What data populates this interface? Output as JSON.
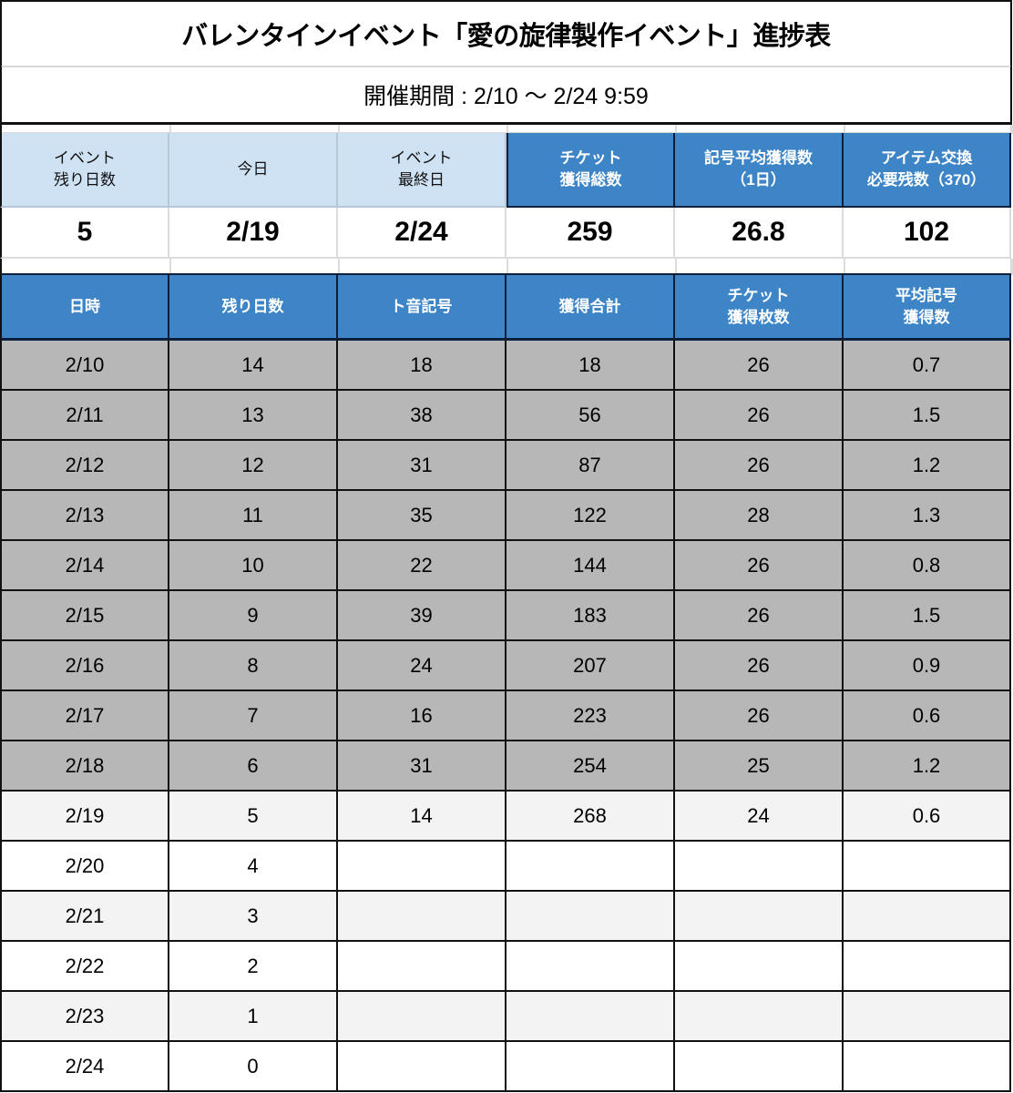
{
  "title": "バレンタインイベント「愛の旋律製作イベント」進捗表",
  "period": "開催期間 : 2/10 〜 2/24 9:59",
  "summary": {
    "headers": [
      "イベント\n残り日数",
      "今日",
      "イベント\n最終日",
      "チケット\n獲得総数",
      "記号平均獲得数\n（1日）",
      "アイテム交換\n必要残数（370）"
    ],
    "values": [
      "5",
      "2/19",
      "2/24",
      "259",
      "26.8",
      "102"
    ]
  },
  "table": {
    "headers": [
      "日時",
      "残り日数",
      "ト音記号",
      "獲得合計",
      "チケット\n獲得枚数",
      "平均記号\n獲得数"
    ],
    "rows": [
      {
        "status": "past",
        "cells": [
          "2/10",
          "14",
          "18",
          "18",
          "26",
          "0.7"
        ]
      },
      {
        "status": "past",
        "cells": [
          "2/11",
          "13",
          "38",
          "56",
          "26",
          "1.5"
        ]
      },
      {
        "status": "past",
        "cells": [
          "2/12",
          "12",
          "31",
          "87",
          "26",
          "1.2"
        ]
      },
      {
        "status": "past",
        "cells": [
          "2/13",
          "11",
          "35",
          "122",
          "28",
          "1.3"
        ]
      },
      {
        "status": "past",
        "cells": [
          "2/14",
          "10",
          "22",
          "144",
          "26",
          "0.8"
        ]
      },
      {
        "status": "past",
        "cells": [
          "2/15",
          "9",
          "39",
          "183",
          "26",
          "1.5"
        ]
      },
      {
        "status": "past",
        "cells": [
          "2/16",
          "8",
          "24",
          "207",
          "26",
          "0.9"
        ]
      },
      {
        "status": "past",
        "cells": [
          "2/17",
          "7",
          "16",
          "223",
          "26",
          "0.6"
        ]
      },
      {
        "status": "past",
        "cells": [
          "2/18",
          "6",
          "31",
          "254",
          "25",
          "1.2"
        ]
      },
      {
        "status": "today",
        "cells": [
          "2/19",
          "5",
          "14",
          "268",
          "24",
          "0.6"
        ]
      },
      {
        "status": "future-a",
        "cells": [
          "2/20",
          "4",
          "",
          "",
          "",
          ""
        ]
      },
      {
        "status": "future-b",
        "cells": [
          "2/21",
          "3",
          "",
          "",
          "",
          ""
        ]
      },
      {
        "status": "future-a",
        "cells": [
          "2/22",
          "2",
          "",
          "",
          "",
          ""
        ]
      },
      {
        "status": "future-b",
        "cells": [
          "2/23",
          "1",
          "",
          "",
          "",
          ""
        ]
      },
      {
        "status": "future-a",
        "cells": [
          "2/24",
          "0",
          "",
          "",
          "",
          ""
        ]
      }
    ]
  },
  "colors": {
    "header_dark_blue": "#3d85c6",
    "header_light_blue": "#cfe2f3",
    "past_row_gray": "#b7b7b7",
    "alt_row_light": "#f3f3f3"
  }
}
